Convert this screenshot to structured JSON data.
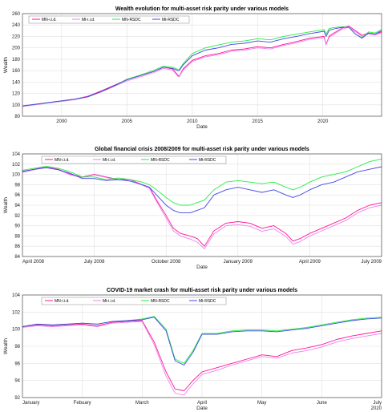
{
  "chart_data": [
    {
      "type": "line",
      "title": "Wealth evolution for multi-asset risk parity under various models",
      "xlabel": "Date",
      "ylabel": "Wealth",
      "xlim": [
        1997.0,
        2024.5
      ],
      "ylim": [
        80,
        260
      ],
      "yticks": [
        80,
        100,
        120,
        140,
        160,
        180,
        200,
        220,
        240,
        260
      ],
      "xticks": [
        {
          "at": 2000,
          "label": "2000"
        },
        {
          "at": 2005,
          "label": "2005"
        },
        {
          "at": 2010,
          "label": "2010"
        },
        {
          "at": 2015,
          "label": "2015"
        },
        {
          "at": 2020,
          "label": "2020"
        }
      ],
      "grid": true,
      "legend": "top-left",
      "x": [
        1997.0,
        1998.0,
        1999.0,
        2000.0,
        2001.0,
        2002.0,
        2003.0,
        2004.0,
        2005.0,
        2006.0,
        2007.0,
        2007.8,
        2008.5,
        2008.9,
        2009.0,
        2009.3,
        2010.0,
        2011.0,
        2012.0,
        2013.0,
        2014.0,
        2015.0,
        2016.0,
        2017.0,
        2018.0,
        2019.0,
        2020.1,
        2020.25,
        2020.5,
        2021.0,
        2021.5,
        2022.0,
        2022.5,
        2023.0,
        2023.5,
        2024.0,
        2024.5
      ],
      "series": [
        {
          "name": "MN-i.i.d.",
          "color": "#ff1493",
          "values": [
            98,
            101,
            104,
            107,
            110,
            115,
            124,
            134,
            144,
            151,
            158,
            166,
            163,
            152,
            150,
            163,
            178,
            186,
            190,
            196,
            198,
            202,
            200,
            206,
            211,
            217,
            220,
            206,
            221,
            228,
            235,
            238,
            230,
            222,
            226,
            224,
            228
          ]
        },
        {
          "name": "Mt-i.i.d.",
          "color": "#ee82ee",
          "values": [
            97,
            100,
            103,
            106,
            109,
            114,
            122,
            132,
            142,
            149,
            156,
            164,
            161,
            150,
            149,
            161,
            176,
            184,
            188,
            194,
            196,
            200,
            198,
            204,
            209,
            215,
            218,
            205,
            219,
            226,
            233,
            236,
            228,
            220,
            224,
            222,
            226
          ]
        },
        {
          "name": "MN-RSDC",
          "color": "#22ee44",
          "values": [
            98,
            101,
            104,
            107,
            110,
            114,
            123,
            133,
            145,
            152,
            160,
            168,
            166,
            162,
            162,
            172,
            190,
            200,
            205,
            210,
            212,
            216,
            214,
            220,
            224,
            228,
            232,
            224,
            234,
            236,
            237,
            236,
            224,
            218,
            228,
            226,
            232
          ]
        },
        {
          "name": "Mt-RSDC",
          "color": "#4444ee",
          "values": [
            98,
            101,
            104,
            107,
            110,
            114,
            123,
            133,
            144,
            151,
            158,
            166,
            164,
            160,
            160,
            170,
            186,
            196,
            200,
            206,
            208,
            212,
            210,
            216,
            220,
            225,
            229,
            220,
            231,
            234,
            236,
            236,
            224,
            217,
            226,
            224,
            230
          ]
        }
      ]
    },
    {
      "type": "line",
      "title": "Global financial crisis 2008/2009 for multi-asset risk parity under various models",
      "xlabel": "Date",
      "ylabel": "Wealth",
      "xlim": [
        0,
        15
      ],
      "ylim": [
        84,
        104
      ],
      "yticks": [
        84,
        86,
        88,
        90,
        92,
        94,
        96,
        98,
        100,
        102,
        104
      ],
      "xticks": [
        {
          "at": 0,
          "label": "April 2008"
        },
        {
          "at": 3,
          "label": "July 2008"
        },
        {
          "at": 6,
          "label": "October 2008"
        },
        {
          "at": 9,
          "label": "January 2009"
        },
        {
          "at": 12,
          "label": "April 2009"
        },
        {
          "at": 15,
          "label": "July 2009"
        }
      ],
      "grid": true,
      "legend": "top",
      "x": [
        0,
        0.5,
        1.0,
        1.5,
        2.0,
        2.5,
        3.0,
        3.5,
        4.0,
        4.5,
        5.0,
        5.3,
        5.6,
        6.0,
        6.3,
        6.6,
        7.0,
        7.3,
        7.6,
        8.0,
        8.5,
        9.0,
        9.5,
        10.0,
        10.5,
        11.0,
        11.3,
        11.6,
        12.0,
        12.5,
        13.0,
        13.5,
        14.0,
        14.5,
        15.0
      ],
      "series": [
        {
          "name": "MN-i.i.d.",
          "color": "#ff1493",
          "values": [
            100.5,
            101,
            101.5,
            101,
            100,
            99.5,
            100,
            99.5,
            99,
            99,
            98,
            97.5,
            95,
            92,
            89.5,
            88.5,
            88,
            87.5,
            86,
            89,
            90.5,
            90.8,
            90.5,
            89.5,
            90,
            88.5,
            87,
            87.5,
            88.5,
            89.5,
            90.5,
            91.5,
            93,
            94,
            94.5
          ]
        },
        {
          "name": "Mt-i.i.d.",
          "color": "#ee82ee",
          "values": [
            100.4,
            100.9,
            101.4,
            100.9,
            99.9,
            99.4,
            99.9,
            99.4,
            98.9,
            98.9,
            97.9,
            97.3,
            94.7,
            91.5,
            89,
            88,
            87.4,
            86.8,
            85.5,
            88.4,
            90,
            90.2,
            89.9,
            88.9,
            89.4,
            87.9,
            86.4,
            86.9,
            88,
            89,
            90,
            91,
            92.5,
            93.5,
            94
          ]
        },
        {
          "name": "MN-RSDC",
          "color": "#22ee44",
          "values": [
            100.8,
            101.2,
            101.6,
            101.2,
            100.5,
            99.5,
            99.5,
            99,
            99.3,
            99,
            98.5,
            98,
            97,
            95.5,
            94.5,
            94,
            94,
            94.5,
            95,
            97,
            98.5,
            98.8,
            98.5,
            98.2,
            98.5,
            97.5,
            97,
            97.5,
            98.5,
            99.5,
            100,
            100.5,
            101.5,
            102.5,
            103
          ]
        },
        {
          "name": "Mt-RSDC",
          "color": "#4444ee",
          "values": [
            100.6,
            101,
            101.3,
            100.9,
            100.2,
            99.2,
            99.2,
            98.8,
            99,
            98.7,
            98,
            97.5,
            96,
            94,
            93,
            92.5,
            92.5,
            93,
            93.5,
            96,
            97,
            97.5,
            97,
            96.5,
            97,
            96,
            95.5,
            96,
            97,
            98,
            98.5,
            99.5,
            100.5,
            101,
            101.5
          ]
        }
      ]
    },
    {
      "type": "line",
      "title": "COVID-19 market crash for multi-asset risk parity under various models",
      "xlabel": "Date",
      "ylabel": "Wealth",
      "xlim": [
        0,
        6
      ],
      "ylim": [
        92,
        104
      ],
      "yticks": [
        92,
        94,
        96,
        98,
        100,
        102,
        104
      ],
      "xticks": [
        {
          "at": 0,
          "label": "January"
        },
        {
          "at": 1,
          "label": "Febuary"
        },
        {
          "at": 2,
          "label": "March"
        },
        {
          "at": 3,
          "label": "April"
        },
        {
          "at": 4,
          "label": "May"
        },
        {
          "at": 5,
          "label": "June"
        },
        {
          "at": 6,
          "label": "July"
        }
      ],
      "year_label": "2020",
      "grid": true,
      "legend": "top",
      "x": [
        0,
        0.25,
        0.5,
        0.75,
        1.0,
        1.25,
        1.5,
        1.75,
        2.0,
        2.2,
        2.4,
        2.55,
        2.7,
        2.85,
        3.0,
        3.25,
        3.5,
        3.75,
        4.0,
        4.25,
        4.5,
        4.75,
        5.0,
        5.25,
        5.5,
        5.75,
        6.0
      ],
      "series": [
        {
          "name": "MN-i.i.d.",
          "color": "#ff1493",
          "values": [
            100.3,
            100.5,
            100.4,
            100.5,
            100.6,
            100.4,
            100.8,
            100.9,
            101.0,
            98.5,
            95.0,
            93.0,
            92.8,
            94.0,
            95.0,
            95.5,
            96.0,
            96.5,
            97.0,
            96.8,
            97.5,
            97.8,
            98.2,
            98.8,
            99.2,
            99.5,
            99.8
          ]
        },
        {
          "name": "Mt-i.i.d.",
          "color": "#ee82ee",
          "values": [
            100.2,
            100.4,
            100.3,
            100.4,
            100.5,
            100.3,
            100.7,
            100.8,
            100.9,
            98.2,
            94.5,
            92.5,
            92.3,
            93.6,
            94.7,
            95.2,
            95.8,
            96.3,
            96.8,
            96.6,
            97.2,
            97.5,
            97.9,
            98.5,
            98.9,
            99.2,
            99.5
          ]
        },
        {
          "name": "MN-RSDC",
          "color": "#22ee44",
          "values": [
            100.3,
            100.6,
            100.5,
            100.6,
            100.7,
            100.6,
            100.9,
            101.0,
            101.2,
            101.5,
            100.0,
            96.5,
            96.0,
            97.5,
            99.5,
            99.5,
            99.8,
            99.9,
            99.9,
            99.8,
            100.0,
            100.2,
            100.5,
            100.8,
            101.1,
            101.3,
            101.4
          ]
        },
        {
          "name": "Mt-RSDC",
          "color": "#4444ee",
          "values": [
            100.3,
            100.6,
            100.5,
            100.6,
            100.7,
            100.6,
            100.9,
            101.0,
            101.1,
            101.4,
            99.8,
            96.3,
            95.8,
            97.3,
            99.4,
            99.4,
            99.7,
            99.8,
            99.8,
            99.7,
            99.9,
            100.1,
            100.4,
            100.7,
            101.0,
            101.2,
            101.3
          ]
        }
      ]
    }
  ]
}
